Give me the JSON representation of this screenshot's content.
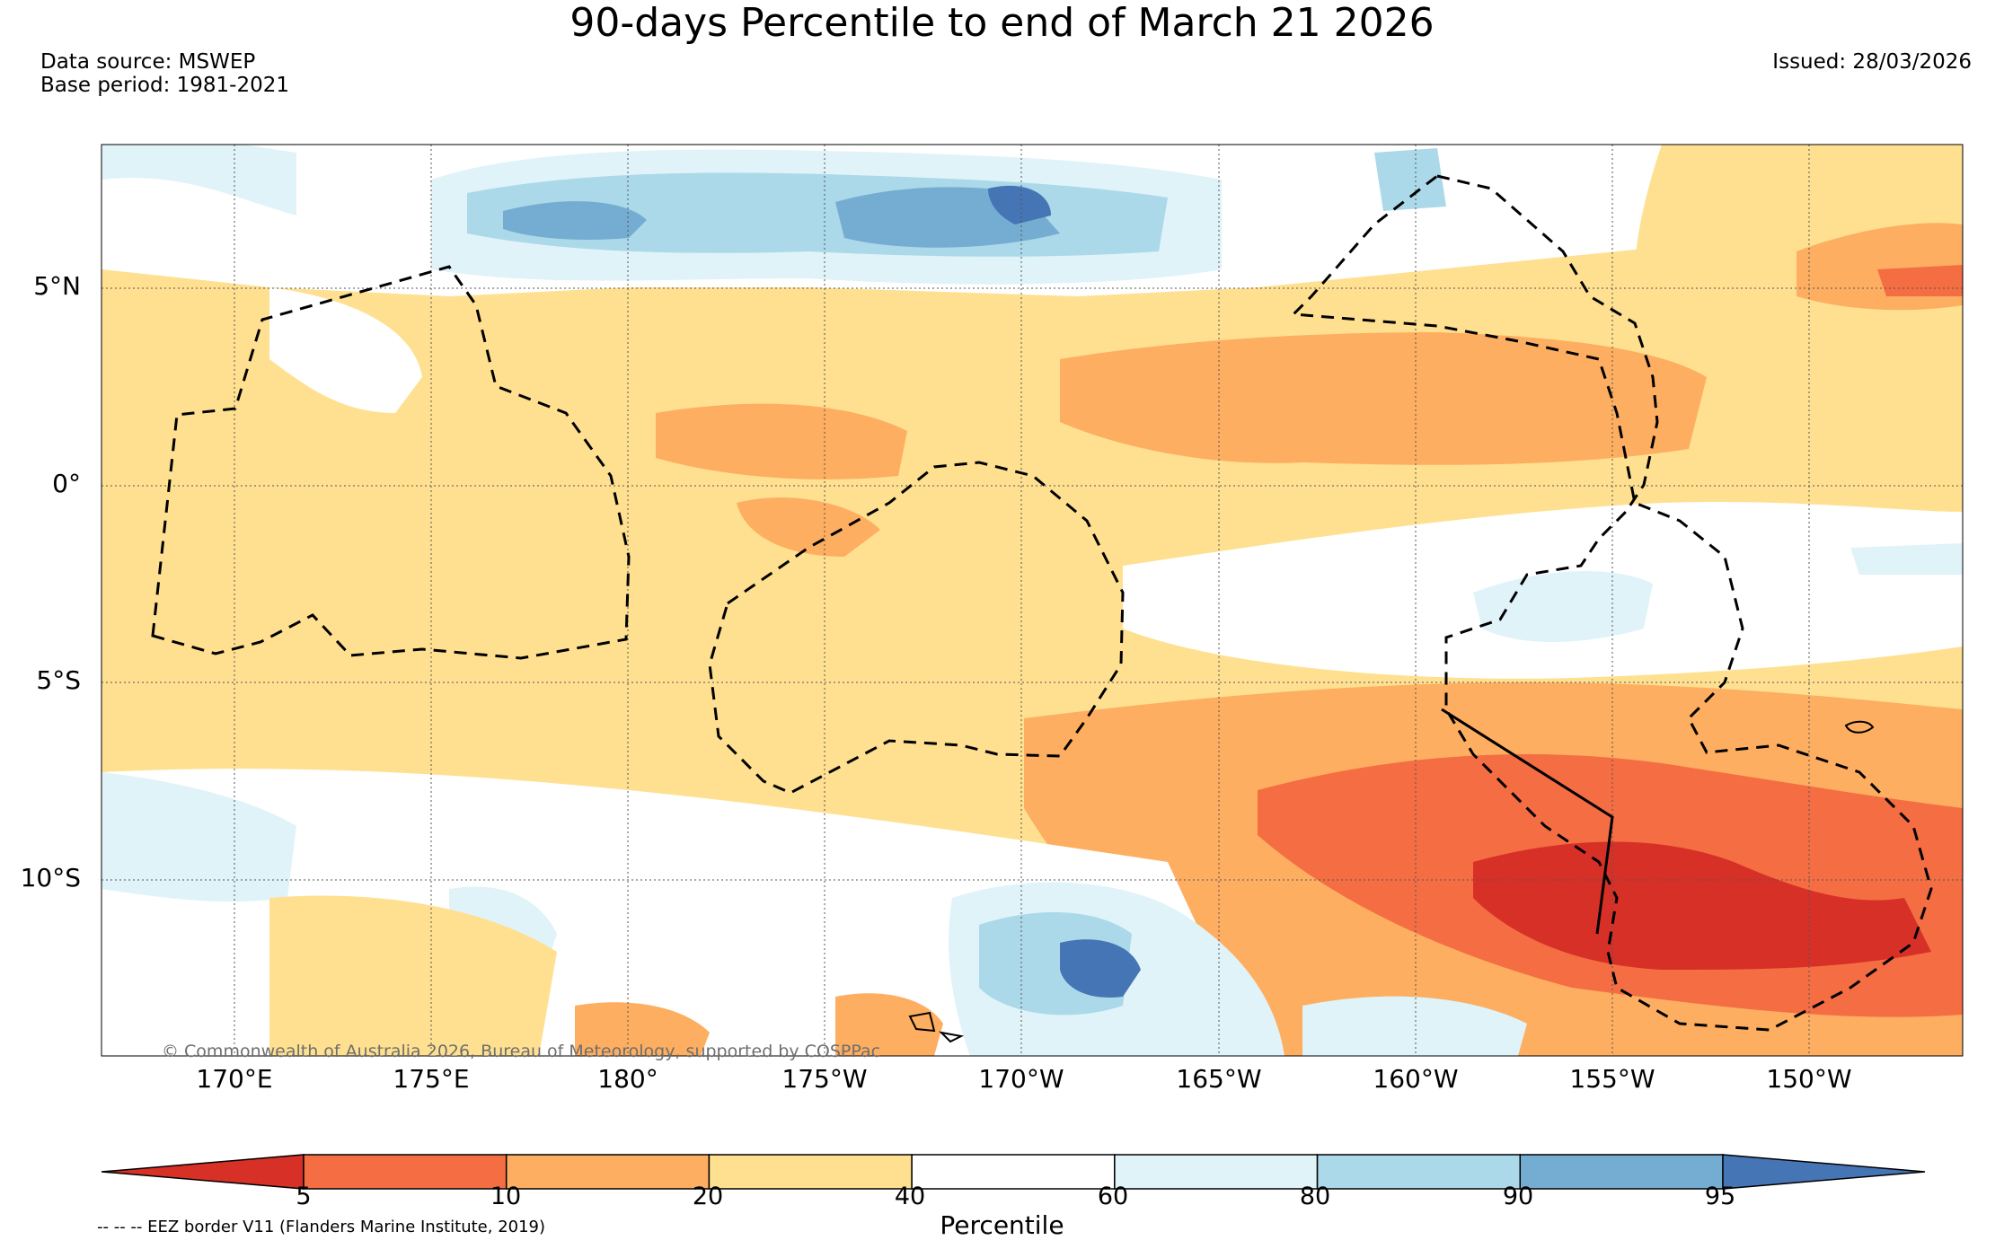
{
  "title": "90-days Percentile to end of March 21 2026",
  "data_source": "Data source: MSWEP",
  "base_period": "Base period: 1981-2021",
  "issued": "Issued: 28/03/2026",
  "copyright": "© Commonwealth of Australia 2026, Bureau of Meteorology, supported by COSPPac",
  "lat_labels": [
    "5°N",
    "0°",
    "5°S",
    "10°S"
  ],
  "lon_labels": [
    "170°E",
    "175°E",
    "180°",
    "175°W",
    "170°W",
    "165°W",
    "160°W",
    "155°W",
    "150°W"
  ],
  "colorbar": {
    "title": "Percentile",
    "ticks": [
      "5",
      "10",
      "20",
      "40",
      "60",
      "80",
      "90",
      "95"
    ],
    "colors": [
      "#d73027",
      "#f46d43",
      "#fdae61",
      "#fee090",
      "#ffffff",
      "#e0f3f8",
      "#abd9e9",
      "#74add1",
      "#4575b4"
    ]
  },
  "legend_note": "-- -- -- EEZ border V11 (Flanders Marine Institute, 2019)"
}
